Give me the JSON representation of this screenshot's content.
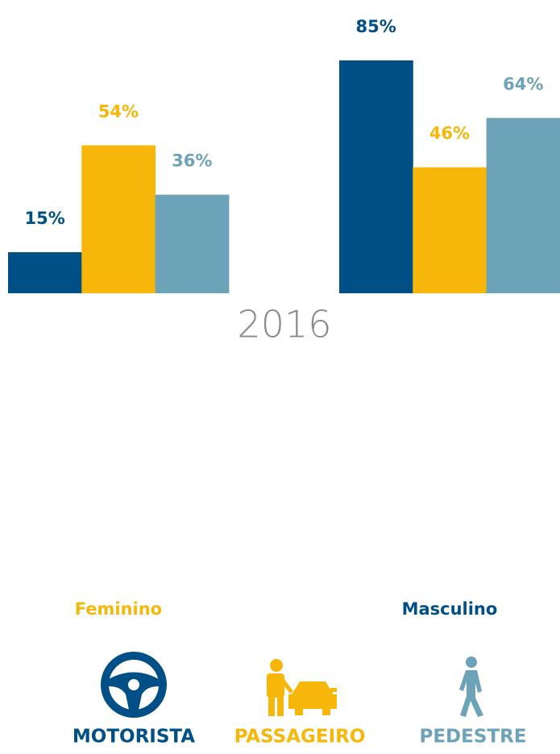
{
  "chart_data": {
    "type": "bar",
    "annotation": "2016",
    "categories": [
      "Feminino",
      "Masculino"
    ],
    "category_colors": [
      "#f7b70a",
      "#004f86"
    ],
    "series": [
      {
        "name": "MOTORISTA",
        "color": "#004f86",
        "values": [
          15,
          85
        ],
        "value_labels": [
          "15%",
          "85%"
        ]
      },
      {
        "name": "PASSAGEIRO",
        "color": "#f7b70a",
        "values": [
          54,
          46
        ],
        "value_labels": [
          "54%",
          "46%"
        ]
      },
      {
        "name": "PEDESTRE",
        "color": "#6da3b9",
        "values": [
          36,
          64
        ],
        "value_labels": [
          "36%",
          "64%"
        ]
      }
    ],
    "ylim": [
      -107,
      85
    ]
  }
}
